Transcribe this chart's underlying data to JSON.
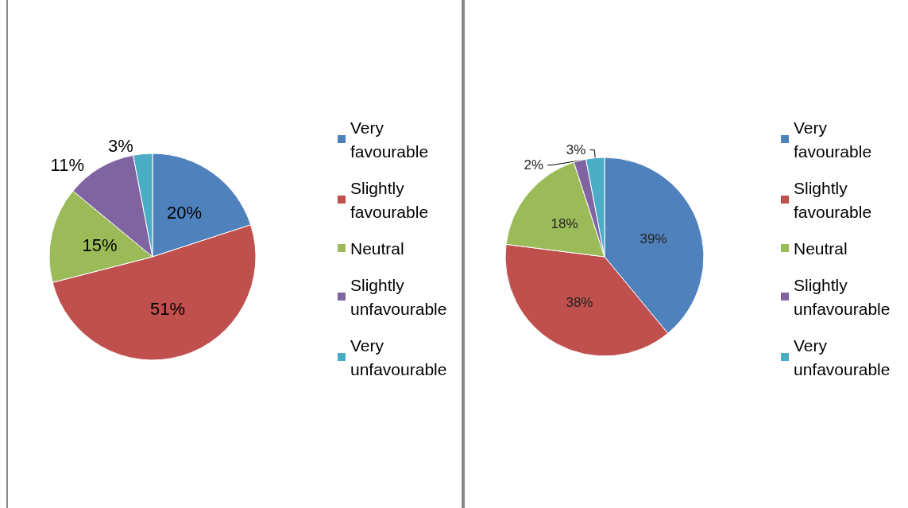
{
  "chart_data": [
    {
      "type": "pie",
      "categories": [
        "Very favourable",
        "Slightly favourable",
        "Neutral",
        "Slightly unfavourable",
        "Very unfavourable"
      ],
      "values": [
        20,
        51,
        15,
        11,
        3
      ],
      "colors": [
        "#4f81bd",
        "#c0504d",
        "#9bbb59",
        "#8064a2",
        "#4bacc6"
      ],
      "value_labels": [
        "20%",
        "51%",
        "15%",
        "11%",
        "3%"
      ],
      "legend": "right"
    },
    {
      "type": "pie",
      "categories": [
        "Very favourable",
        "Slightly favourable",
        "Neutral",
        "Slightly unfavourable",
        "Very unfavourable"
      ],
      "values": [
        39,
        38,
        18,
        2,
        3
      ],
      "colors": [
        "#4f81bd",
        "#c0504d",
        "#9bbb59",
        "#8064a2",
        "#4bacc6"
      ],
      "value_labels": [
        "39%",
        "38%",
        "18%",
        "2%",
        "3%"
      ],
      "legend": "right"
    }
  ]
}
